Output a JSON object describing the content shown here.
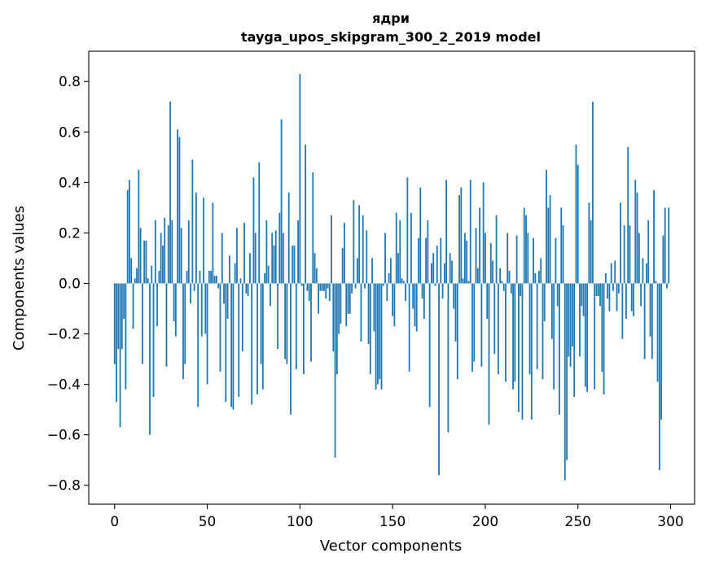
{
  "chart_data": {
    "type": "bar",
    "title": "ядри",
    "subtitle": "tayga_upos_skipgram_300_2_2019 model",
    "xlabel": "Vector components",
    "ylabel": "Components values",
    "xlim": [
      -13.95,
      312.95
    ],
    "ylim": [
      -0.875,
      0.92
    ],
    "xticks": [
      0,
      50,
      100,
      150,
      200,
      250,
      300
    ],
    "xtick_labels": [
      "0",
      "50",
      "100",
      "150",
      "200",
      "250",
      "300"
    ],
    "yticks": [
      -0.8,
      -0.6,
      -0.4,
      -0.2,
      0.0,
      0.2,
      0.4,
      0.6,
      0.8
    ],
    "ytick_labels": [
      "−0.8",
      "−0.6",
      "−0.4",
      "−0.2",
      "0.0",
      "0.2",
      "0.4",
      "0.6",
      "0.8"
    ],
    "bar_color": "#1f77b4",
    "grid": false,
    "values": [
      -0.32,
      -0.47,
      -0.26,
      -0.57,
      -0.26,
      -0.14,
      -0.42,
      0.37,
      0.41,
      0.1,
      -0.18,
      0.02,
      0.06,
      0.45,
      0.22,
      -0.32,
      0.17,
      0.17,
      0.02,
      -0.6,
      0.07,
      -0.45,
      0.25,
      -0.17,
      0.05,
      0.2,
      0.15,
      0.26,
      -0.33,
      0.23,
      0.72,
      0.25,
      -0.15,
      -0.21,
      0.61,
      0.58,
      0.22,
      -0.38,
      -0.32,
      0.05,
      0.25,
      -0.08,
      0.49,
      -0.03,
      0.36,
      -0.49,
      0.05,
      -0.21,
      0.34,
      -0.2,
      -0.4,
      0.05,
      0.05,
      0.32,
      0.03,
      0.03,
      -0.02,
      -0.35,
      0.2,
      -0.08,
      -0.47,
      -0.14,
      0.11,
      -0.49,
      -0.5,
      0.08,
      0.22,
      -0.45,
      0.02,
      -0.27,
      0.24,
      -0.04,
      -0.05,
      0.12,
      -0.48,
      0.42,
      0.2,
      -0.44,
      0.48,
      -0.32,
      -0.42,
      0.04,
      0.25,
      0.07,
      -0.09,
      0.2,
      0.15,
      0.21,
      -0.26,
      0.28,
      0.65,
      0.2,
      -0.3,
      -0.32,
      0.36,
      -0.52,
      0.15,
      0.15,
      -0.34,
      0.25,
      0.83,
      -0.01,
      -0.36,
      0.55,
      -0.03,
      -0.07,
      -0.31,
      0.44,
      0.12,
      0.06,
      -0.12,
      -0.03,
      -0.03,
      -0.03,
      -0.06,
      -0.02,
      -0.07,
      0.27,
      -0.27,
      -0.69,
      -0.36,
      -0.2,
      -0.16,
      0.14,
      0.24,
      -0.17,
      -0.12,
      -0.12,
      -0.04,
      0.33,
      -0.02,
      0.1,
      0.31,
      -0.23,
      0.27,
      -0.02,
      0.21,
      -0.24,
      -0.36,
      0.1,
      -0.19,
      -0.42,
      -0.4,
      -0.38,
      -0.42,
      -0.01,
      0.2,
      -0.07,
      0.04,
      0.1,
      -0.13,
      -0.17,
      0.28,
      0.12,
      0.25,
      0.02,
      0.01,
      -0.07,
      0.42,
      -0.35,
      0.28,
      -0.1,
      -0.17,
      -0.19,
      0.18,
      0.38,
      -0.06,
      -0.14,
      0.18,
      0.25,
      -0.49,
      0.08,
      0.12,
      -0.01,
      0.15,
      -0.76,
      0.18,
      -0.06,
      0.08,
      0.41,
      -0.59,
      0.12,
      0.09,
      -0.1,
      -0.23,
      -0.38,
      0.35,
      0.38,
      0.02,
      0.2,
      0.17,
      0.01,
      0.41,
      -0.35,
      -0.31,
      0.22,
      0.06,
      0.3,
      -0.33,
      0.4,
      0.2,
      -0.14,
      -0.56,
      0.16,
      0.09,
      -0.28,
      0.27,
      -0.36,
      0.06,
      0.01,
      -0.03,
      -0.39,
      0.2,
      0.05,
      -0.04,
      -0.42,
      -0.39,
      0.19,
      -0.51,
      -0.05,
      -0.54,
      0.3,
      0.27,
      0.2,
      -0.36,
      -0.54,
      0.18,
      0.04,
      -0.34,
      0.05,
      0.1,
      -0.38,
      -0.15,
      0.45,
      0.3,
      0.35,
      -0.22,
      -0.42,
      0.18,
      -0.09,
      -0.52,
      0.3,
      0.23,
      -0.78,
      -0.7,
      -0.29,
      -0.33,
      -0.25,
      -0.45,
      0.55,
      0.47,
      -0.29,
      -0.09,
      -0.13,
      -0.41,
      -0.43,
      0.32,
      0.25,
      0.72,
      -0.42,
      -0.05,
      -0.05,
      -0.09,
      -0.35,
      -0.44,
      0.04,
      -0.06,
      -0.11,
      0.08,
      -0.03,
      0.09,
      -0.11,
      -0.04,
      0.32,
      -0.22,
      0.23,
      -0.14,
      0.54,
      0.23,
      -0.11,
      -0.13,
      0.41,
      0.36,
      0.2,
      -0.09,
      0.1,
      -0.3,
      0.08,
      0.25,
      -0.21,
      -0.3,
      0.37,
      0.01,
      -0.39,
      -0.74,
      -0.54,
      0.19,
      0.3,
      -0.02,
      0.3
    ]
  }
}
